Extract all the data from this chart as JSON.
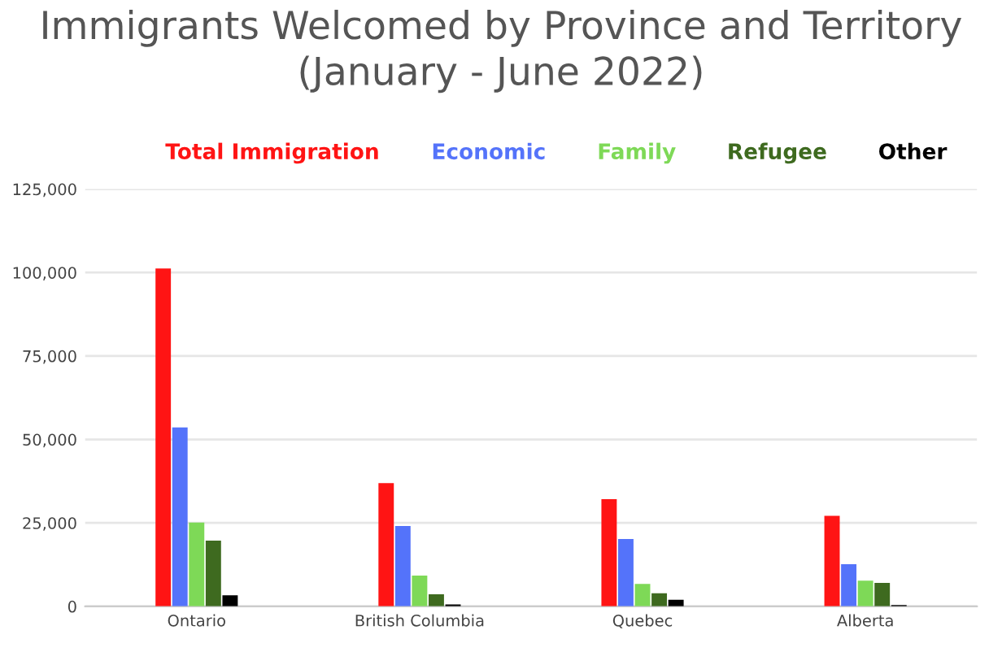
{
  "chart_data": {
    "type": "bar",
    "title": "Immigrants Welcomed by Province and Territory\n(January - June 2022)",
    "categories": [
      "Ontario",
      "British Columbia",
      "Quebec",
      "Alberta"
    ],
    "series": [
      {
        "name": "Total Immigration",
        "color": "#ff1414",
        "values": [
          101200,
          36900,
          32100,
          27100
        ]
      },
      {
        "name": "Economic",
        "color": "#5473fa",
        "values": [
          53600,
          24100,
          20200,
          12600
        ]
      },
      {
        "name": "Family",
        "color": "#7ed957",
        "values": [
          25100,
          9200,
          6700,
          7700
        ]
      },
      {
        "name": "Refugee",
        "color": "#3e6a1f",
        "values": [
          19700,
          3600,
          3900,
          7000
        ]
      },
      {
        "name": "Other",
        "color": "#000000",
        "values": [
          3300,
          600,
          2000,
          400
        ]
      }
    ],
    "ylim": [
      0,
      125000
    ],
    "yticks": [
      {
        "value": 0,
        "label": "0"
      },
      {
        "value": 25000,
        "label": "25,000"
      },
      {
        "value": 50000,
        "label": "50,000"
      },
      {
        "value": 75000,
        "label": "75,000"
      },
      {
        "value": 100000,
        "label": "100,000"
      },
      {
        "value": 125000,
        "label": "125,000"
      }
    ],
    "grid": "y",
    "legend": "top"
  }
}
